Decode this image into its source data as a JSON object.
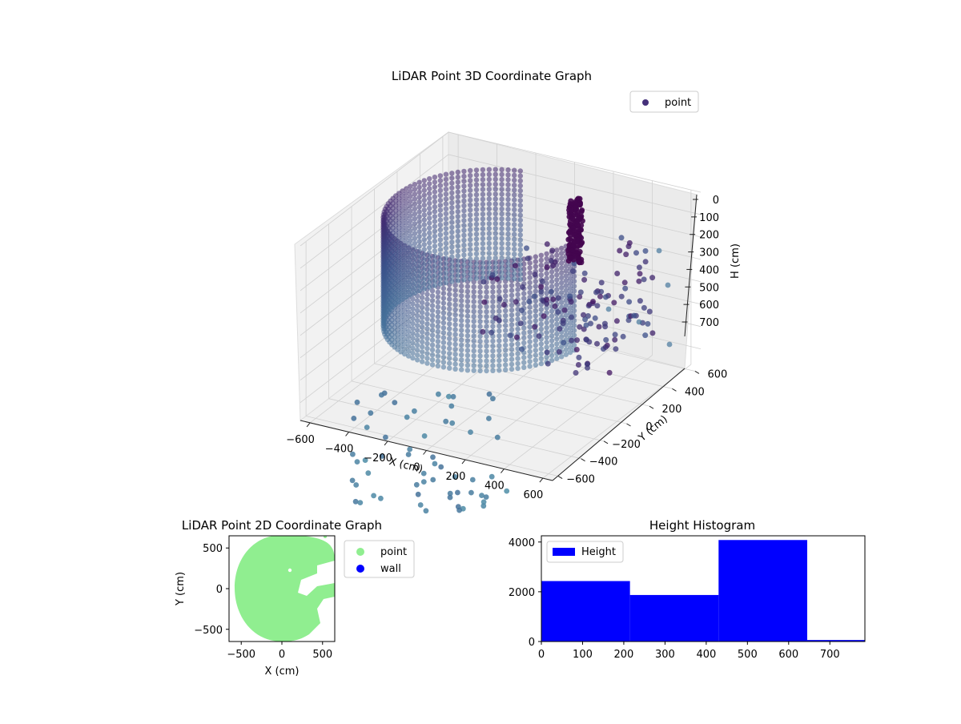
{
  "chart_data": [
    {
      "type": "scatter",
      "projection": "3d",
      "title": "LiDAR Point 3D Coordinate Graph",
      "xlabel": "X (cm)",
      "ylabel": "Y (cm)",
      "zlabel": "H (cm)",
      "xlim": [
        -650,
        650
      ],
      "ylim": [
        -650,
        650
      ],
      "zlim": [
        780,
        0
      ],
      "xticks": [
        "−600",
        "−400",
        "−200",
        "0",
        "200",
        "400",
        "600"
      ],
      "yticks": [
        "−600",
        "−400",
        "−200",
        "0",
        "200",
        "400",
        "600"
      ],
      "zticks": [
        "0",
        "100",
        "200",
        "300",
        "400",
        "500",
        "600",
        "700"
      ],
      "legend": {
        "position": "top-right",
        "entries": [
          {
            "name": "point",
            "color": "#45307a"
          }
        ]
      },
      "grid": true,
      "colors": {
        "dark": "#440154",
        "mid": "#3b528b",
        "light": "#4f8fa8"
      }
    },
    {
      "type": "scatter",
      "title": "LiDAR Point 2D Coordinate Graph",
      "xlabel": "X (cm)",
      "ylabel": "Y (cm)",
      "xlim": [
        -650,
        650
      ],
      "ylim": [
        -650,
        650
      ],
      "xticks": [
        "−500",
        "0",
        "500"
      ],
      "yticks": [
        "500",
        "0",
        "−500"
      ],
      "legend": {
        "position": "right",
        "entries": [
          {
            "name": "point",
            "color": "#90ee90"
          },
          {
            "name": "wall",
            "color": "#0000ff"
          }
        ]
      },
      "grid": false
    },
    {
      "type": "bar",
      "title": "Height Histogram",
      "xlim": [
        0,
        785
      ],
      "ylim": [
        0,
        4250
      ],
      "xticks": [
        "0",
        "100",
        "200",
        "300",
        "400",
        "500",
        "600",
        "700"
      ],
      "yticks": [
        "0",
        "2000",
        "4000"
      ],
      "bins": [
        [
          0,
          215
        ],
        [
          215,
          430
        ],
        [
          430,
          645
        ],
        [
          645,
          785
        ]
      ],
      "values": [
        2430,
        1870,
        4080,
        60
      ],
      "series": [
        {
          "name": "Height",
          "color": "#0000ff"
        }
      ],
      "legend": {
        "position": "top-left"
      }
    }
  ]
}
